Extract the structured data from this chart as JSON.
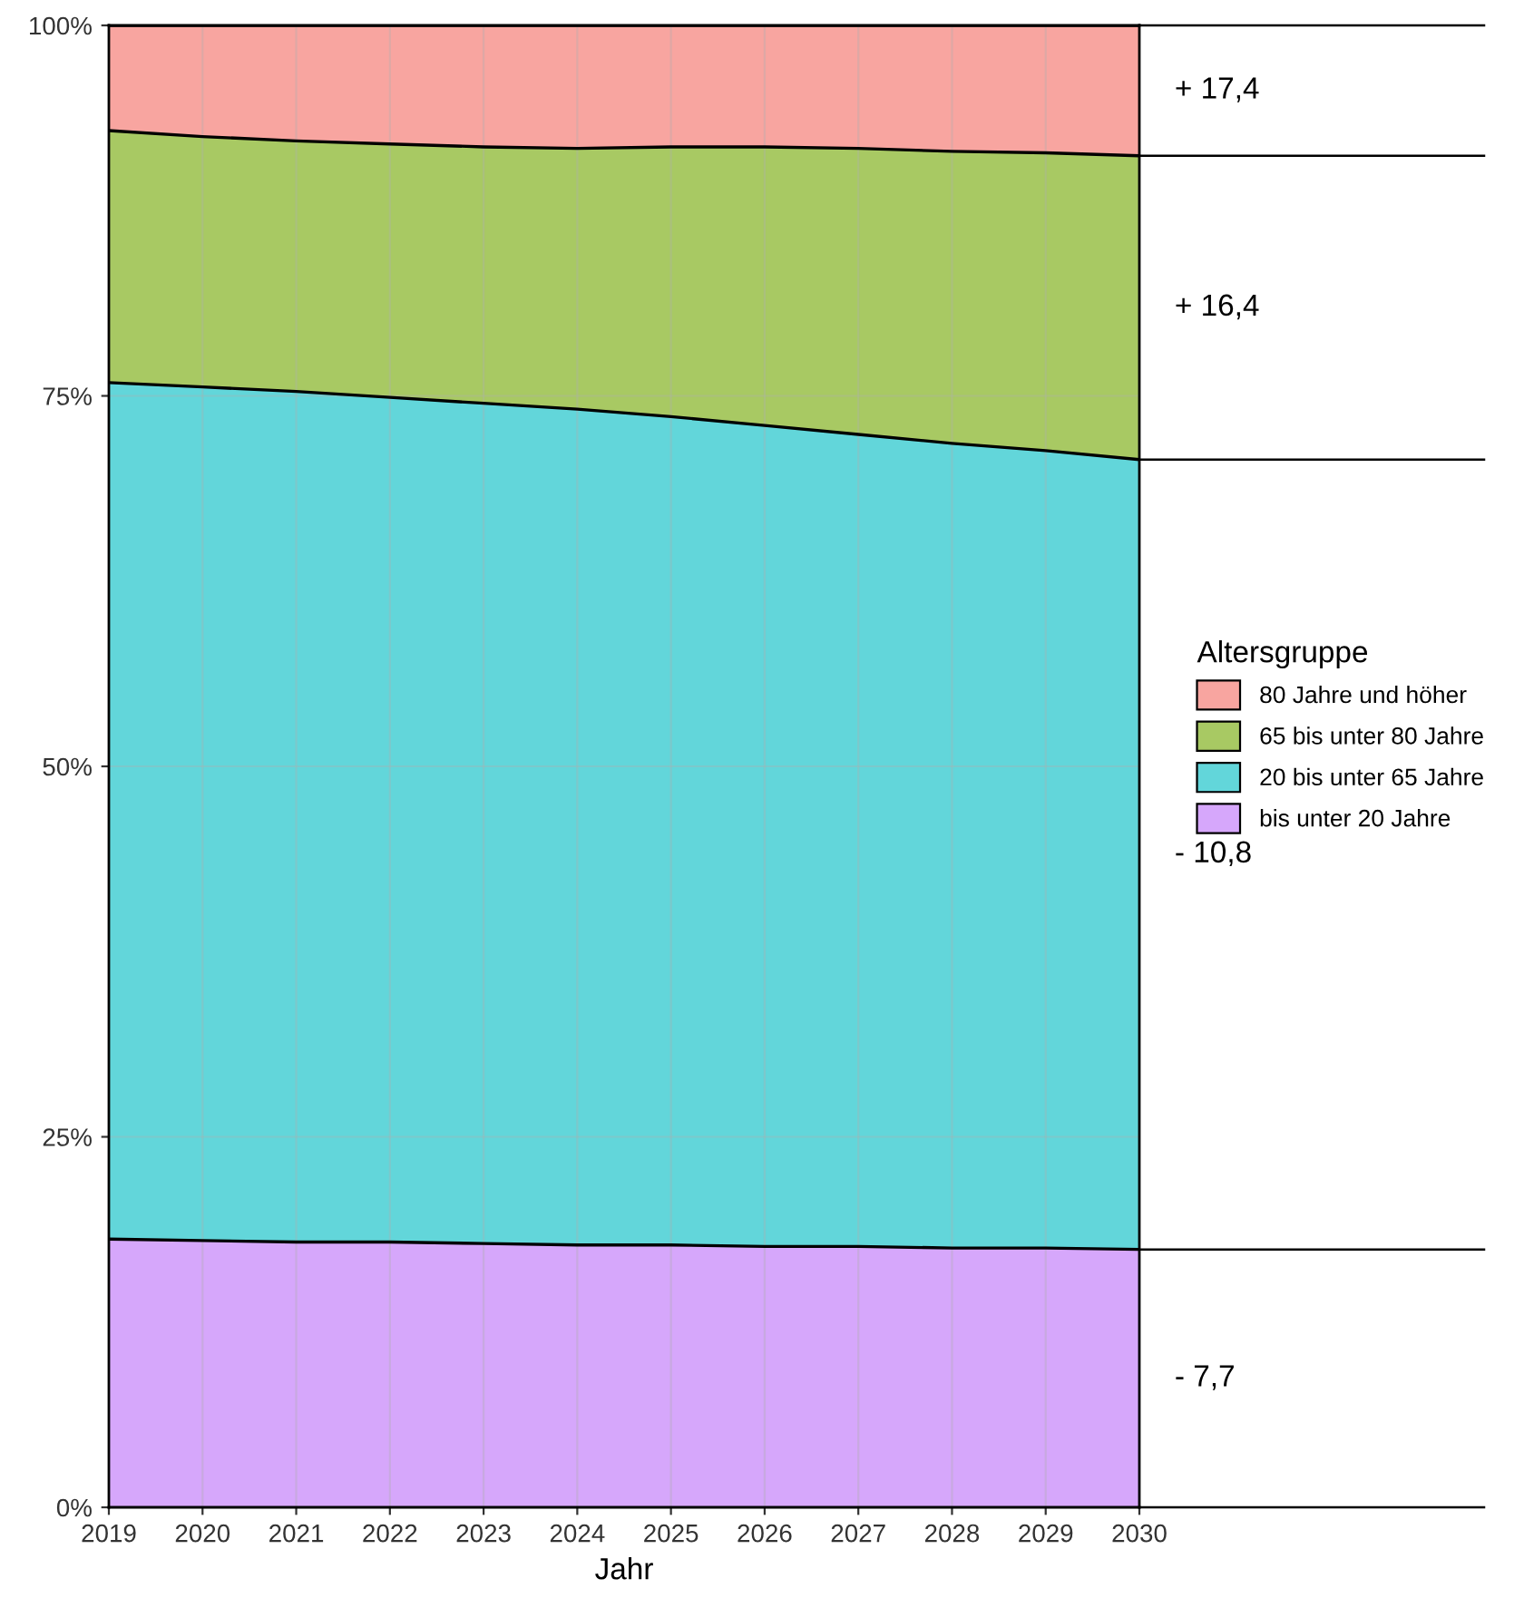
{
  "chart_data": {
    "type": "area",
    "stacked": true,
    "xlabel": "Jahr",
    "legend_title": "Altersgruppe",
    "legend": "right",
    "grid": true,
    "x": [
      2019,
      2020,
      2021,
      2022,
      2023,
      2024,
      2025,
      2026,
      2027,
      2028,
      2029,
      2030
    ],
    "xlim": [
      2019,
      2030
    ],
    "xticks": [
      2019,
      2020,
      2021,
      2022,
      2023,
      2024,
      2025,
      2026,
      2027,
      2028,
      2029,
      2030
    ],
    "ylim": [
      0,
      100
    ],
    "yticks": [
      {
        "value": 0,
        "label": "0%"
      },
      {
        "value": 25,
        "label": "25%"
      },
      {
        "value": 50,
        "label": "50%"
      },
      {
        "value": 75,
        "label": "75%"
      },
      {
        "value": 100,
        "label": "100%"
      }
    ],
    "series": [
      {
        "name": "bis unter 20 Jahre",
        "color": "#d6a7fb",
        "values": [
          18.1,
          18.0,
          17.9,
          17.9,
          17.8,
          17.7,
          17.7,
          17.6,
          17.6,
          17.5,
          17.5,
          17.4
        ]
      },
      {
        "name": "20 bis unter 65 Jahre",
        "color": "#62d6da",
        "values": [
          57.8,
          57.6,
          57.4,
          57.0,
          56.7,
          56.4,
          55.9,
          55.4,
          54.8,
          54.3,
          53.8,
          53.3
        ]
      },
      {
        "name": "65 bis unter 80 Jahre",
        "color": "#a8c963",
        "values": [
          17.0,
          16.9,
          16.9,
          17.1,
          17.3,
          17.6,
          18.2,
          18.8,
          19.3,
          19.7,
          20.1,
          20.5
        ]
      },
      {
        "name": "80 Jahre und höher",
        "color": "#f8a5a0",
        "values": [
          7.1,
          7.5,
          7.8,
          8.0,
          8.2,
          8.3,
          8.2,
          8.2,
          8.3,
          8.5,
          8.6,
          8.8
        ]
      }
    ],
    "annotations": [
      "+ 17,4",
      "+ 16,4",
      "- 10,8",
      "- 7,7"
    ]
  }
}
